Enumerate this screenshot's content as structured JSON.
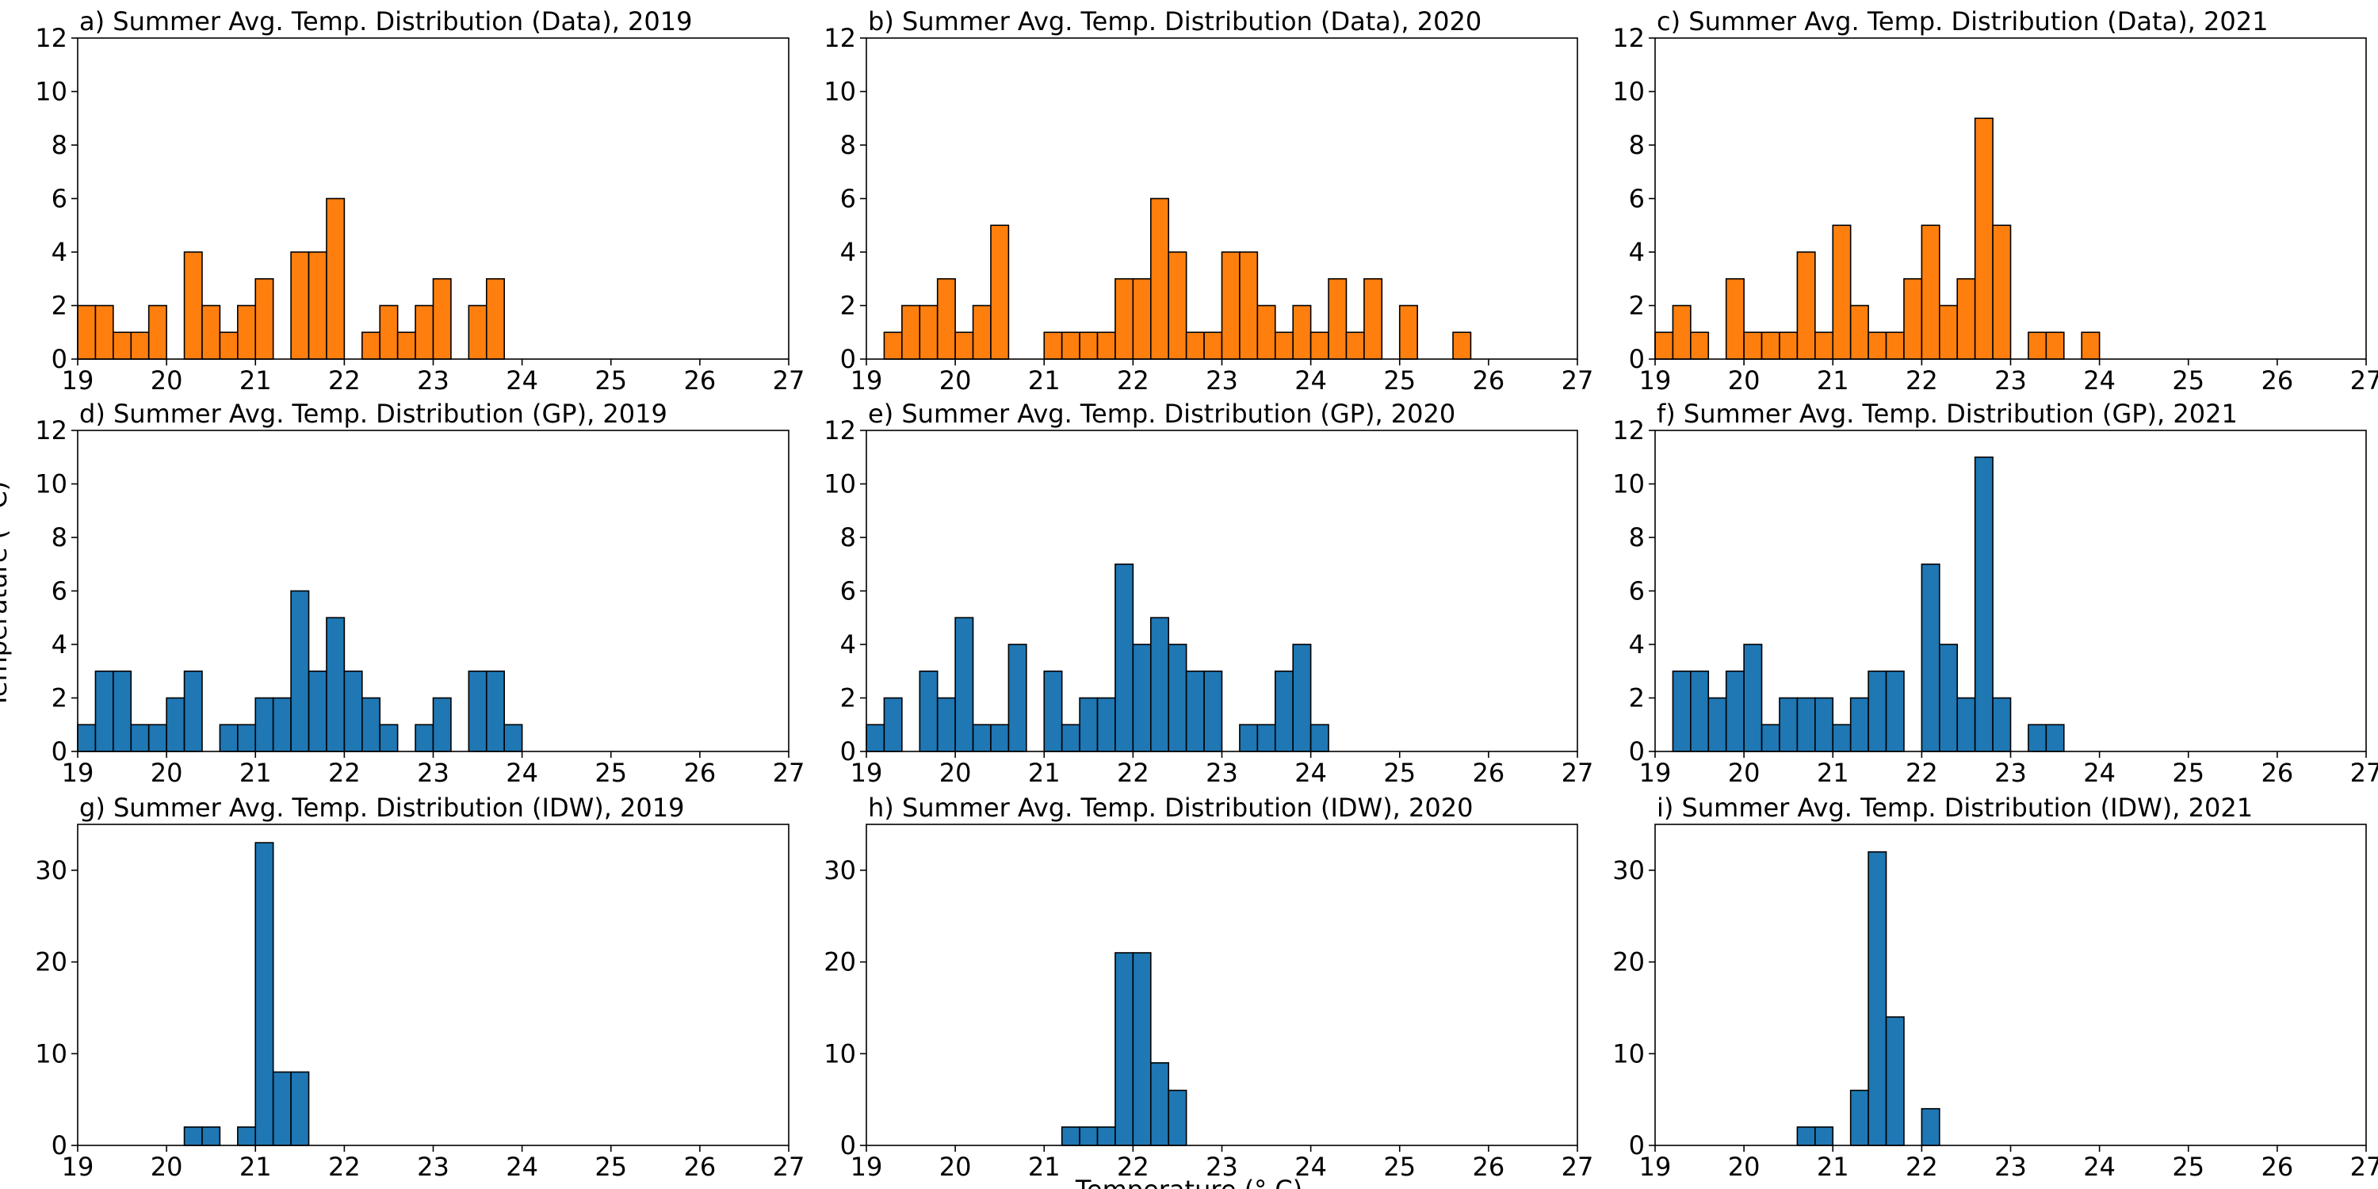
{
  "figure": {
    "xlabel": "Temperature (° C)",
    "ylabel": "Temperature (° C)"
  },
  "chart_data": [
    {
      "type": "bar",
      "title": "a) Summer Avg. Temp. Distribution (Data), 2019",
      "color": "#ff7f0e",
      "xlim": [
        19,
        27
      ],
      "ylim": [
        0,
        12
      ],
      "xticks": [
        19,
        20,
        21,
        22,
        23,
        24,
        25,
        26,
        27
      ],
      "yticks": [
        0,
        2,
        4,
        6,
        8,
        10,
        12
      ],
      "grid": false,
      "bins": [
        [
          19.0,
          19.2,
          2
        ],
        [
          19.2,
          19.4,
          2
        ],
        [
          19.4,
          19.6,
          1
        ],
        [
          19.6,
          19.8,
          1
        ],
        [
          19.8,
          20.0,
          2
        ],
        [
          20.2,
          20.4,
          4
        ],
        [
          20.4,
          20.6,
          2
        ],
        [
          20.6,
          20.8,
          1
        ],
        [
          20.8,
          21.0,
          2
        ],
        [
          21.0,
          21.2,
          3
        ],
        [
          21.4,
          21.6,
          4
        ],
        [
          21.6,
          21.8,
          4
        ],
        [
          21.8,
          22.0,
          6
        ],
        [
          22.2,
          22.4,
          1
        ],
        [
          22.4,
          22.6,
          2
        ],
        [
          22.6,
          22.8,
          1
        ],
        [
          22.8,
          23.0,
          2
        ],
        [
          23.0,
          23.2,
          3
        ],
        [
          23.4,
          23.6,
          2
        ],
        [
          23.6,
          23.8,
          3
        ]
      ]
    },
    {
      "type": "bar",
      "title": "b) Summer Avg. Temp. Distribution (Data), 2020",
      "color": "#ff7f0e",
      "xlim": [
        19,
        27
      ],
      "ylim": [
        0,
        12
      ],
      "xticks": [
        19,
        20,
        21,
        22,
        23,
        24,
        25,
        26,
        27
      ],
      "yticks": [
        0,
        2,
        4,
        6,
        8,
        10,
        12
      ],
      "grid": false,
      "bins": [
        [
          19.2,
          19.4,
          1
        ],
        [
          19.4,
          19.6,
          2
        ],
        [
          19.6,
          19.8,
          2
        ],
        [
          19.8,
          20.0,
          3
        ],
        [
          20.0,
          20.2,
          1
        ],
        [
          20.2,
          20.4,
          2
        ],
        [
          20.4,
          20.6,
          5
        ],
        [
          21.0,
          21.2,
          1
        ],
        [
          21.2,
          21.4,
          1
        ],
        [
          21.4,
          21.6,
          1
        ],
        [
          21.6,
          21.8,
          1
        ],
        [
          21.8,
          22.0,
          3
        ],
        [
          22.0,
          22.2,
          3
        ],
        [
          22.2,
          22.4,
          6
        ],
        [
          22.4,
          22.6,
          4
        ],
        [
          22.6,
          22.8,
          1
        ],
        [
          22.8,
          23.0,
          1
        ],
        [
          23.0,
          23.2,
          4
        ],
        [
          23.2,
          23.4,
          4
        ],
        [
          23.4,
          23.6,
          2
        ],
        [
          23.6,
          23.8,
          1
        ],
        [
          23.8,
          24.0,
          2
        ],
        [
          24.0,
          24.2,
          1
        ],
        [
          24.2,
          24.4,
          3
        ],
        [
          24.4,
          24.6,
          1
        ],
        [
          24.6,
          24.8,
          3
        ],
        [
          25.0,
          25.2,
          2
        ],
        [
          25.6,
          25.8,
          1
        ]
      ]
    },
    {
      "type": "bar",
      "title": "c) Summer Avg. Temp. Distribution (Data), 2021",
      "color": "#ff7f0e",
      "xlim": [
        19,
        27
      ],
      "ylim": [
        0,
        12
      ],
      "xticks": [
        19,
        20,
        21,
        22,
        23,
        24,
        25,
        26,
        27
      ],
      "yticks": [
        0,
        2,
        4,
        6,
        8,
        10,
        12
      ],
      "grid": false,
      "bins": [
        [
          19.0,
          19.2,
          1
        ],
        [
          19.2,
          19.4,
          2
        ],
        [
          19.4,
          19.6,
          1
        ],
        [
          19.8,
          20.0,
          3
        ],
        [
          20.0,
          20.2,
          1
        ],
        [
          20.2,
          20.4,
          1
        ],
        [
          20.4,
          20.6,
          1
        ],
        [
          20.6,
          20.8,
          4
        ],
        [
          20.8,
          21.0,
          1
        ],
        [
          21.0,
          21.2,
          5
        ],
        [
          21.2,
          21.4,
          2
        ],
        [
          21.4,
          21.6,
          1
        ],
        [
          21.6,
          21.8,
          1
        ],
        [
          21.8,
          22.0,
          3
        ],
        [
          22.0,
          22.2,
          5
        ],
        [
          22.2,
          22.4,
          2
        ],
        [
          22.4,
          22.6,
          3
        ],
        [
          22.6,
          22.8,
          9
        ],
        [
          22.8,
          23.0,
          5
        ],
        [
          23.2,
          23.4,
          1
        ],
        [
          23.4,
          23.6,
          1
        ],
        [
          23.8,
          24.0,
          1
        ]
      ]
    },
    {
      "type": "bar",
      "title": "d) Summer Avg. Temp. Distribution (GP), 2019",
      "color": "#1f77b4",
      "xlim": [
        19,
        27
      ],
      "ylim": [
        0,
        12
      ],
      "xticks": [
        19,
        20,
        21,
        22,
        23,
        24,
        25,
        26,
        27
      ],
      "yticks": [
        0,
        2,
        4,
        6,
        8,
        10,
        12
      ],
      "grid": false,
      "bins": [
        [
          19.0,
          19.2,
          1
        ],
        [
          19.2,
          19.4,
          3
        ],
        [
          19.4,
          19.6,
          3
        ],
        [
          19.6,
          19.8,
          1
        ],
        [
          19.8,
          20.0,
          1
        ],
        [
          20.0,
          20.2,
          2
        ],
        [
          20.2,
          20.4,
          3
        ],
        [
          20.6,
          20.8,
          1
        ],
        [
          20.8,
          21.0,
          1
        ],
        [
          21.0,
          21.2,
          2
        ],
        [
          21.2,
          21.4,
          2
        ],
        [
          21.4,
          21.6,
          6
        ],
        [
          21.6,
          21.8,
          3
        ],
        [
          21.8,
          22.0,
          5
        ],
        [
          22.0,
          22.2,
          3
        ],
        [
          22.2,
          22.4,
          2
        ],
        [
          22.4,
          22.6,
          1
        ],
        [
          22.8,
          23.0,
          1
        ],
        [
          23.0,
          23.2,
          2
        ],
        [
          23.4,
          23.6,
          3
        ],
        [
          23.6,
          23.8,
          3
        ],
        [
          23.8,
          24.0,
          1
        ]
      ]
    },
    {
      "type": "bar",
      "title": "e) Summer Avg. Temp. Distribution (GP), 2020",
      "color": "#1f77b4",
      "xlim": [
        19,
        27
      ],
      "ylim": [
        0,
        12
      ],
      "xticks": [
        19,
        20,
        21,
        22,
        23,
        24,
        25,
        26,
        27
      ],
      "yticks": [
        0,
        2,
        4,
        6,
        8,
        10,
        12
      ],
      "grid": false,
      "bins": [
        [
          19.0,
          19.2,
          1
        ],
        [
          19.2,
          19.4,
          2
        ],
        [
          19.6,
          19.8,
          3
        ],
        [
          19.8,
          20.0,
          2
        ],
        [
          20.0,
          20.2,
          5
        ],
        [
          20.2,
          20.4,
          1
        ],
        [
          20.4,
          20.6,
          1
        ],
        [
          20.6,
          20.8,
          4
        ],
        [
          21.0,
          21.2,
          3
        ],
        [
          21.2,
          21.4,
          1
        ],
        [
          21.4,
          21.6,
          2
        ],
        [
          21.6,
          21.8,
          2
        ],
        [
          21.8,
          22.0,
          7
        ],
        [
          22.0,
          22.2,
          4
        ],
        [
          22.2,
          22.4,
          5
        ],
        [
          22.4,
          22.6,
          4
        ],
        [
          22.6,
          22.8,
          3
        ],
        [
          22.8,
          23.0,
          3
        ],
        [
          23.2,
          23.4,
          1
        ],
        [
          23.4,
          23.6,
          1
        ],
        [
          23.6,
          23.8,
          3
        ],
        [
          23.8,
          24.0,
          4
        ],
        [
          24.0,
          24.2,
          1
        ]
      ]
    },
    {
      "type": "bar",
      "title": "f) Summer Avg. Temp. Distribution (GP), 2021",
      "color": "#1f77b4",
      "xlim": [
        19,
        27
      ],
      "ylim": [
        0,
        12
      ],
      "xticks": [
        19,
        20,
        21,
        22,
        23,
        24,
        25,
        26,
        27
      ],
      "yticks": [
        0,
        2,
        4,
        6,
        8,
        10,
        12
      ],
      "grid": false,
      "bins": [
        [
          19.2,
          19.4,
          3
        ],
        [
          19.4,
          19.6,
          3
        ],
        [
          19.6,
          19.8,
          2
        ],
        [
          19.8,
          20.0,
          3
        ],
        [
          20.0,
          20.2,
          4
        ],
        [
          20.2,
          20.4,
          1
        ],
        [
          20.4,
          20.6,
          2
        ],
        [
          20.6,
          20.8,
          2
        ],
        [
          20.8,
          21.0,
          2
        ],
        [
          21.0,
          21.2,
          1
        ],
        [
          21.2,
          21.4,
          2
        ],
        [
          21.4,
          21.6,
          3
        ],
        [
          21.6,
          21.8,
          3
        ],
        [
          22.0,
          22.2,
          7
        ],
        [
          22.2,
          22.4,
          4
        ],
        [
          22.4,
          22.6,
          2
        ],
        [
          22.6,
          22.8,
          11
        ],
        [
          22.8,
          23.0,
          2
        ],
        [
          23.2,
          23.4,
          1
        ],
        [
          23.4,
          23.6,
          1
        ]
      ]
    },
    {
      "type": "bar",
      "title": "g) Summer Avg. Temp. Distribution (IDW), 2019",
      "color": "#1f77b4",
      "xlim": [
        19,
        27
      ],
      "ylim": [
        0,
        35
      ],
      "xticks": [
        19,
        20,
        21,
        22,
        23,
        24,
        25,
        26,
        27
      ],
      "yticks": [
        0,
        10,
        20,
        30
      ],
      "grid": false,
      "bins": [
        [
          20.2,
          20.4,
          2
        ],
        [
          20.4,
          20.6,
          2
        ],
        [
          20.8,
          21.0,
          2
        ],
        [
          21.0,
          21.2,
          33
        ],
        [
          21.2,
          21.4,
          8
        ],
        [
          21.4,
          21.6,
          8
        ]
      ]
    },
    {
      "type": "bar",
      "title": "h) Summer Avg. Temp. Distribution (IDW), 2020",
      "color": "#1f77b4",
      "xlim": [
        19,
        27
      ],
      "ylim": [
        0,
        35
      ],
      "xticks": [
        19,
        20,
        21,
        22,
        23,
        24,
        25,
        26,
        27
      ],
      "yticks": [
        0,
        10,
        20,
        30
      ],
      "grid": false,
      "bins": [
        [
          21.2,
          21.4,
          2
        ],
        [
          21.4,
          21.6,
          2
        ],
        [
          21.6,
          21.8,
          2
        ],
        [
          21.8,
          22.0,
          21
        ],
        [
          22.0,
          22.2,
          21
        ],
        [
          22.2,
          22.4,
          9
        ],
        [
          22.4,
          22.6,
          6
        ]
      ]
    },
    {
      "type": "bar",
      "title": "i) Summer Avg. Temp. Distribution (IDW), 2021",
      "color": "#1f77b4",
      "xlim": [
        19,
        27
      ],
      "ylim": [
        0,
        35
      ],
      "xticks": [
        19,
        20,
        21,
        22,
        23,
        24,
        25,
        26,
        27
      ],
      "yticks": [
        0,
        10,
        20,
        30
      ],
      "grid": false,
      "bins": [
        [
          20.6,
          20.8,
          2
        ],
        [
          20.8,
          21.0,
          2
        ],
        [
          21.2,
          21.4,
          6
        ],
        [
          21.4,
          21.6,
          32
        ],
        [
          21.6,
          21.8,
          14
        ],
        [
          22.0,
          22.2,
          4
        ]
      ]
    }
  ]
}
